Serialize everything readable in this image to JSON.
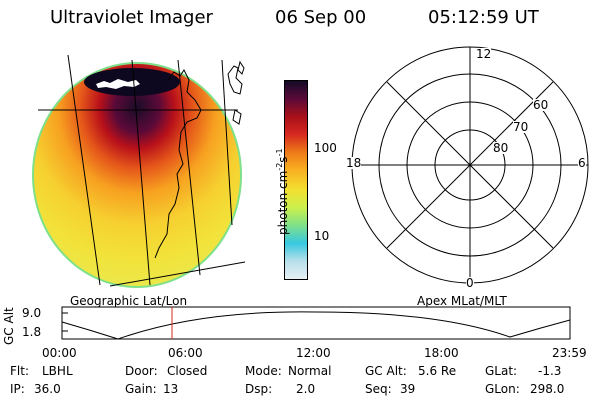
{
  "header": {
    "title": "Ultraviolet Imager",
    "date": "06 Sep 00",
    "time": "05:12:59 UT"
  },
  "colorbar": {
    "axis_label": "photon cm-2s-1",
    "ticks": [
      "100",
      "10"
    ],
    "colors": [
      "#e6f0f4",
      "#b8e0ea",
      "#38c8e0",
      "#7ee08a",
      "#ccf04c",
      "#f2e030",
      "#f8b020",
      "#ee7a18",
      "#d62820",
      "#a8101a",
      "#5a0a38",
      "#150a28"
    ]
  },
  "left_panel": {
    "caption": "Geographic Lat/Lon"
  },
  "polar_grid": {
    "caption": "Apex MLat/MLT",
    "mlt_labels": {
      "top": "12",
      "left": "18",
      "right": "6",
      "bottom": "0"
    },
    "lat_labels": [
      "60",
      "70",
      "80"
    ]
  },
  "altitude_plot": {
    "ylabel": "GC Alt",
    "yticks": [
      "9.0",
      "1.8"
    ],
    "xticks": [
      "00:00",
      "06:00",
      "12:00",
      "18:00",
      "23:59"
    ]
  },
  "status": {
    "row1": [
      {
        "label": "Flt:",
        "value": "LBHL"
      },
      {
        "label": "Door:",
        "value": "Closed"
      },
      {
        "label": "Mode:",
        "value": "Normal"
      },
      {
        "label": "GC Alt:",
        "value": "5.6 Re"
      },
      {
        "label": "GLat:",
        "value": "-1.3"
      }
    ],
    "row2": [
      {
        "label": "IP:",
        "value": "36.0"
      },
      {
        "label": "Gain:",
        "value": "13"
      },
      {
        "label": "Dsp:",
        "value": "2.0"
      },
      {
        "label": "Seq:",
        "value": "39"
      },
      {
        "label": "GLon:",
        "value": "298.0"
      }
    ]
  }
}
